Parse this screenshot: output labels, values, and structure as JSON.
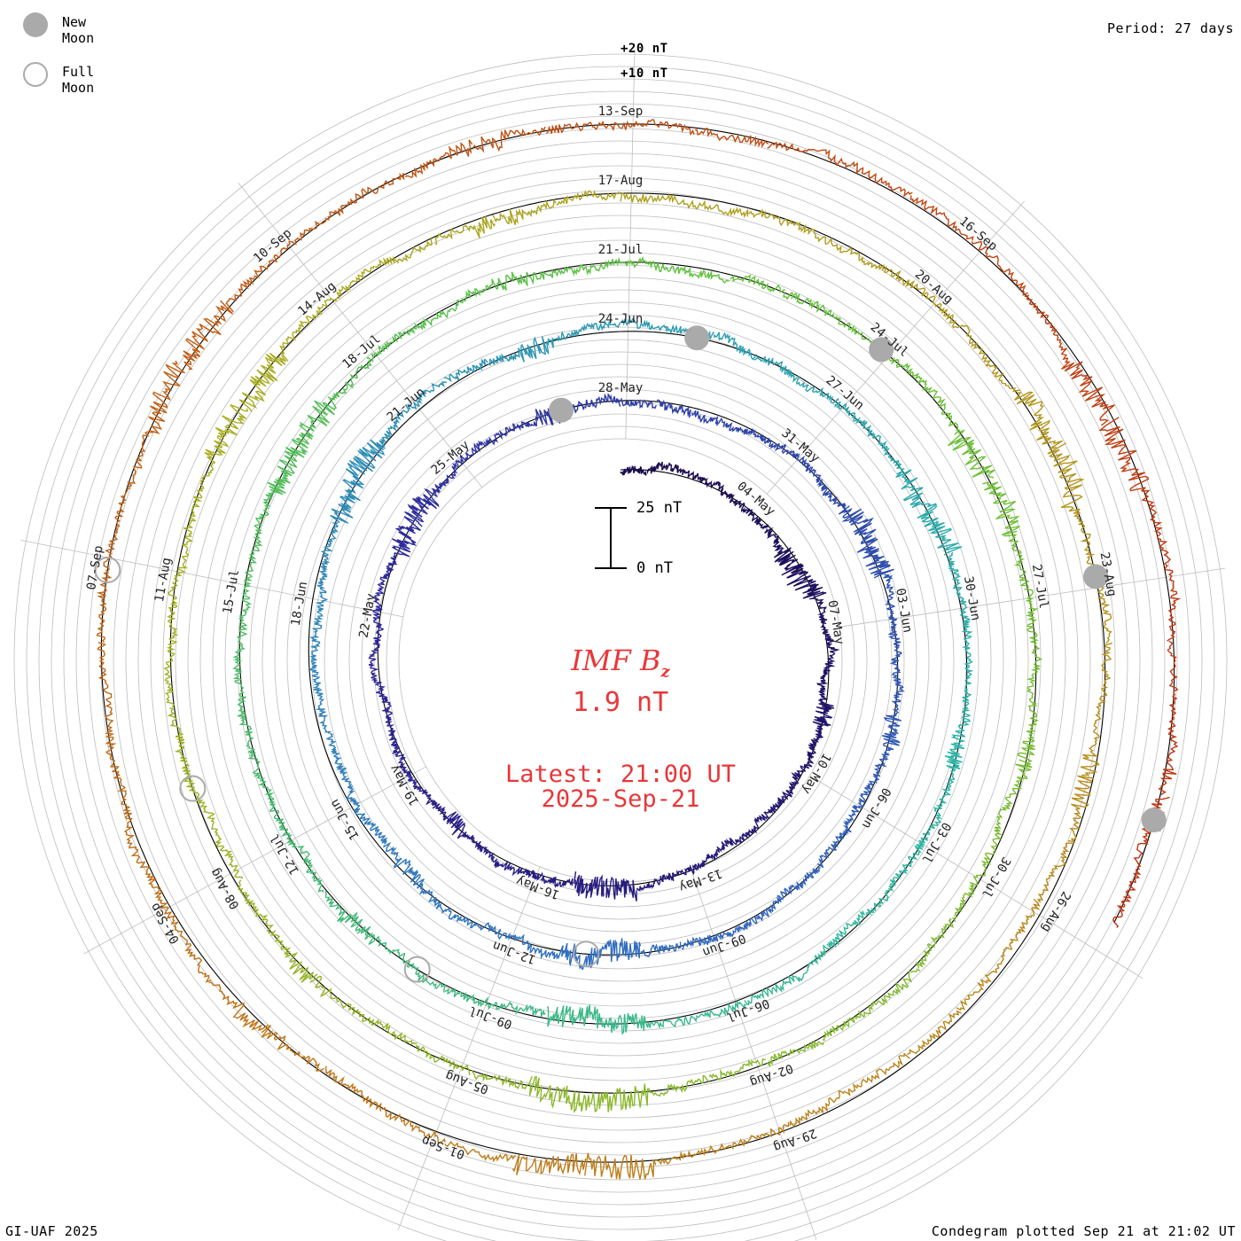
{
  "header": {
    "period": "Period: 27 days",
    "legend": {
      "new_moon": "New Moon",
      "full_moon": "Full Moon"
    }
  },
  "footer": {
    "credit": "GI-UAF 2025",
    "plotted": "Condegram plotted Sep 21 at 21:02 UT"
  },
  "center": {
    "parameter": "IMF",
    "parameter_sub": "B",
    "parameter_subscript": "z",
    "value": "1.9 nT",
    "latest": "Latest: 21:00 UT",
    "date": "2025-Sep-21"
  },
  "scale_bar": {
    "top": "25 nT",
    "bottom": "0 nT"
  },
  "colors": {
    "text_red": "#e8373a",
    "grid": "#bdbdbd",
    "moon": "#aaaaaa"
  },
  "chart_data": {
    "type": "condegram-spiral",
    "title": "IMF Bz",
    "units": "nT",
    "period_days": 27,
    "start_date": "2025-05-01",
    "end": "2025-Sep-21 21:00 UT",
    "latest_value": 1.9,
    "ring_ticks": [
      "+20 nT",
      "+10 nT"
    ],
    "series_colors": [
      "#1a0b4d",
      "#2d2599",
      "#3070c0",
      "#2ab5a8",
      "#62c23a",
      "#a8b020",
      "#c07818",
      "#c03010"
    ],
    "rotations": [
      {
        "color": "#1a0b4d",
        "date_labels": [
          "04-May",
          "07-May",
          "10-May",
          "13-May",
          "16-May",
          "19-May",
          "22-May",
          "25-May",
          "28-May",
          "31-May"
        ]
      },
      {
        "color": "#2d2599",
        "date_labels": [
          "03-Jun",
          "06-Jun",
          "09-Jun",
          "12-Jun",
          "15-Jun",
          "18-Jun",
          "21-Jun",
          "24-Jun",
          "27-Jun"
        ]
      },
      {
        "color": "#3070c0",
        "date_labels": [
          "30-Jun",
          "03-Jul",
          "06-Jul",
          "09-Jul",
          "12-Jul",
          "15-Jul",
          "18-Jul",
          "21-Jul",
          "24-Jul"
        ]
      },
      {
        "color": "#2ab5a8",
        "date_labels": [
          "27-Jul",
          "30-Jul",
          "02-Aug",
          "05-Aug",
          "08-Aug",
          "11-Aug",
          "14-Aug",
          "17-Aug",
          "20-Aug"
        ]
      },
      {
        "color": "#62c23a",
        "date_labels": [
          "23-Aug",
          "26-Aug",
          "29-Aug",
          "01-Sep",
          "04-Sep",
          "07-Sep",
          "10-Sep",
          "13-Sep",
          "16-Sep"
        ]
      }
    ],
    "moon_phases": [
      {
        "phase": "new",
        "date": "2025-05-27"
      },
      {
        "phase": "full",
        "date": "2025-06-11"
      },
      {
        "phase": "new",
        "date": "2025-06-25"
      },
      {
        "phase": "full",
        "date": "2025-07-10"
      },
      {
        "phase": "new",
        "date": "2025-07-24"
      },
      {
        "phase": "full",
        "date": "2025-08-09"
      },
      {
        "phase": "new",
        "date": "2025-08-23"
      },
      {
        "phase": "full",
        "date": "2025-09-07"
      },
      {
        "phase": "new",
        "date": "2025-09-21"
      }
    ]
  }
}
